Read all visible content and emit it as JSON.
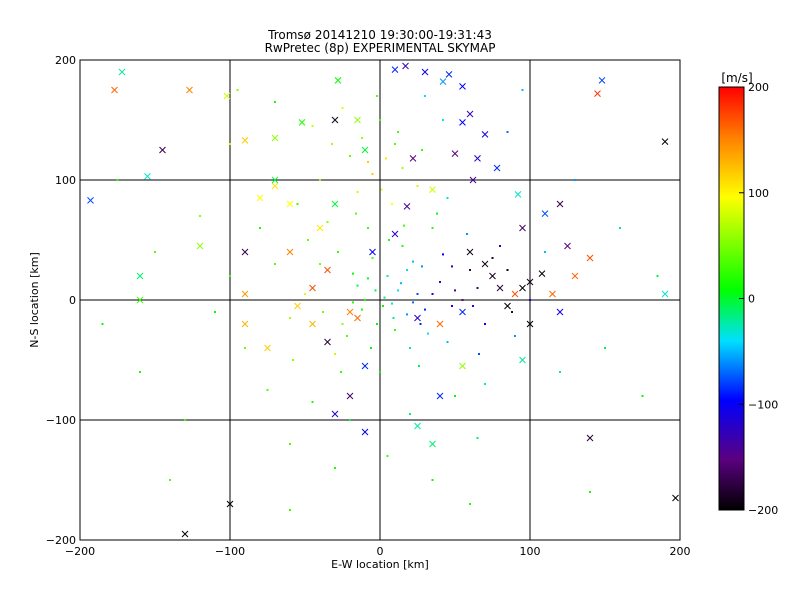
{
  "chart_data": {
    "type": "scatter",
    "title": "Tromsø 20141210 19:30:00-19:31:43",
    "subtitle": "RwPretec (8p) EXPERIMENTAL SKYMAP",
    "xlabel": "E-W location [km]",
    "ylabel": "N-S location [km]",
    "xlim": [
      -200,
      200
    ],
    "ylim": [
      -200,
      200
    ],
    "xticks": [
      -200,
      -100,
      0,
      100,
      200
    ],
    "yticks": [
      -200,
      -100,
      0,
      100,
      200
    ],
    "grid": true,
    "colorbar": {
      "label": "[m/s]",
      "range": [
        -200,
        200
      ],
      "ticks": [
        200,
        100,
        0,
        -100,
        -200
      ],
      "colormap": [
        "#000000",
        "#5a0080",
        "#0000ff",
        "#00e0ff",
        "#00ff00",
        "#ffff00",
        "#ff8000",
        "#ff0000"
      ]
    },
    "series": [
      {
        "marker": "x",
        "points": [
          [
            -177,
            175,
            160
          ],
          [
            -127,
            175,
            150
          ],
          [
            -172,
            190,
            -20
          ],
          [
            -145,
            125,
            -170
          ],
          [
            -193,
            83,
            -80
          ],
          [
            -155,
            103,
            -30
          ],
          [
            -90,
            133,
            120
          ],
          [
            -70,
            95,
            110
          ],
          [
            -70,
            135,
            60
          ],
          [
            -52,
            148,
            20
          ],
          [
            -30,
            150,
            -190
          ],
          [
            -28,
            183,
            10
          ],
          [
            -15,
            150,
            60
          ],
          [
            -10,
            125,
            0
          ],
          [
            10,
            192,
            -90
          ],
          [
            17,
            195,
            -130
          ],
          [
            30,
            190,
            -110
          ],
          [
            42,
            182,
            -60
          ],
          [
            46,
            188,
            -90
          ],
          [
            55,
            178,
            -100
          ],
          [
            60,
            155,
            -130
          ],
          [
            55,
            148,
            -100
          ],
          [
            70,
            138,
            -110
          ],
          [
            50,
            122,
            -150
          ],
          [
            65,
            118,
            -120
          ],
          [
            78,
            110,
            -90
          ],
          [
            62,
            100,
            -140
          ],
          [
            22,
            118,
            -150
          ],
          [
            18,
            78,
            -140
          ],
          [
            35,
            92,
            80
          ],
          [
            92,
            88,
            -30
          ],
          [
            95,
            60,
            -160
          ],
          [
            110,
            72,
            -80
          ],
          [
            120,
            80,
            -170
          ],
          [
            125,
            45,
            -150
          ],
          [
            140,
            35,
            170
          ],
          [
            145,
            172,
            180
          ],
          [
            148,
            183,
            -80
          ],
          [
            190,
            132,
            -200
          ],
          [
            -102,
            170,
            80
          ],
          [
            -70,
            100,
            0
          ],
          [
            -60,
            80,
            100
          ],
          [
            -5,
            40,
            -100
          ],
          [
            10,
            55,
            -120
          ],
          [
            70,
            30,
            -190
          ],
          [
            75,
            20,
            -190
          ],
          [
            80,
            10,
            -180
          ],
          [
            95,
            10,
            -200
          ],
          [
            100,
            15,
            -190
          ],
          [
            108,
            22,
            -200
          ],
          [
            115,
            5,
            160
          ],
          [
            90,
            5,
            170
          ],
          [
            85,
            -5,
            -200
          ],
          [
            100,
            -20,
            -200
          ],
          [
            120,
            -10,
            -110
          ],
          [
            130,
            20,
            160
          ],
          [
            60,
            40,
            -190
          ],
          [
            55,
            -10,
            -90
          ],
          [
            25,
            -15,
            -120
          ],
          [
            40,
            -20,
            160
          ],
          [
            -15,
            -15,
            160
          ],
          [
            -20,
            -10,
            150
          ],
          [
            -35,
            -35,
            -180
          ],
          [
            -10,
            -55,
            -90
          ],
          [
            -55,
            -5,
            120
          ],
          [
            -45,
            10,
            170
          ],
          [
            -35,
            25,
            170
          ],
          [
            -60,
            40,
            150
          ],
          [
            -90,
            40,
            -170
          ],
          [
            -40,
            60,
            110
          ],
          [
            -30,
            80,
            0
          ],
          [
            -80,
            85,
            100
          ],
          [
            -120,
            45,
            60
          ],
          [
            -160,
            20,
            -10
          ],
          [
            -160,
            0,
            30
          ],
          [
            -90,
            5,
            140
          ],
          [
            -90,
            -20,
            130
          ],
          [
            -75,
            -40,
            120
          ],
          [
            -30,
            -95,
            -120
          ],
          [
            -10,
            -110,
            -100
          ],
          [
            25,
            -105,
            -20
          ],
          [
            40,
            -80,
            -90
          ],
          [
            35,
            -120,
            -10
          ],
          [
            -20,
            -80,
            -160
          ],
          [
            55,
            -55,
            60
          ],
          [
            95,
            -50,
            -20
          ],
          [
            140,
            -115,
            -180
          ],
          [
            -130,
            -195,
            -200
          ],
          [
            -100,
            -170,
            -200
          ],
          [
            197,
            -165,
            -200
          ],
          [
            190,
            5,
            -30
          ],
          [
            -45,
            -20,
            130
          ]
        ]
      },
      {
        "marker": "dot",
        "points": [
          [
            5,
            20,
            -20
          ],
          [
            12,
            8,
            -40
          ],
          [
            -10,
            0,
            20
          ],
          [
            18,
            -12,
            -60
          ],
          [
            2,
            -5,
            10
          ],
          [
            -15,
            12,
            -10
          ],
          [
            25,
            5,
            -80
          ],
          [
            10,
            -25,
            30
          ],
          [
            -5,
            35,
            40
          ],
          [
            30,
            -8,
            -90
          ],
          [
            -25,
            -20,
            60
          ],
          [
            40,
            15,
            -130
          ],
          [
            -40,
            30,
            50
          ],
          [
            15,
            45,
            20
          ],
          [
            20,
            -40,
            -20
          ],
          [
            -30,
            -45,
            80
          ],
          [
            45,
            -35,
            -50
          ],
          [
            -50,
            5,
            90
          ],
          [
            55,
            0,
            -150
          ],
          [
            -8,
            60,
            30
          ],
          [
            0,
            -60,
            10
          ],
          [
            60,
            25,
            -170
          ],
          [
            -60,
            -15,
            70
          ],
          [
            35,
            60,
            20
          ],
          [
            -35,
            65,
            60
          ],
          [
            70,
            -20,
            -100
          ],
          [
            -70,
            30,
            40
          ],
          [
            8,
            80,
            100
          ],
          [
            -15,
            90,
            110
          ],
          [
            25,
            95,
            80
          ],
          [
            -5,
            105,
            120
          ],
          [
            15,
            110,
            70
          ],
          [
            -20,
            120,
            50
          ],
          [
            10,
            130,
            40
          ],
          [
            -40,
            100,
            60
          ],
          [
            45,
            85,
            -30
          ],
          [
            -55,
            80,
            30
          ],
          [
            80,
            45,
            -110
          ],
          [
            -80,
            60,
            20
          ],
          [
            90,
            -30,
            -60
          ],
          [
            -90,
            -40,
            50
          ],
          [
            100,
            0,
            -120
          ],
          [
            -100,
            20,
            30
          ],
          [
            50,
            -80,
            10
          ],
          [
            -45,
            -85,
            20
          ],
          [
            20,
            -95,
            -10
          ],
          [
            -20,
            -100,
            0
          ],
          [
            70,
            -70,
            -30
          ],
          [
            -75,
            -75,
            40
          ],
          [
            110,
            40,
            -50
          ],
          [
            -110,
            -10,
            10
          ],
          [
            120,
            -60,
            -20
          ],
          [
            -120,
            70,
            60
          ],
          [
            5,
            -130,
            30
          ],
          [
            -30,
            -140,
            20
          ],
          [
            35,
            -150,
            10
          ],
          [
            -60,
            -120,
            40
          ],
          [
            65,
            -115,
            -10
          ],
          [
            130,
            100,
            -60
          ],
          [
            -130,
            -100,
            30
          ],
          [
            150,
            -40,
            0
          ],
          [
            -150,
            40,
            40
          ],
          [
            160,
            60,
            -20
          ],
          [
            -160,
            -60,
            20
          ],
          [
            0,
            150,
            30
          ],
          [
            -25,
            160,
            90
          ],
          [
            30,
            170,
            -40
          ],
          [
            -70,
            165,
            20
          ],
          [
            85,
            140,
            -70
          ],
          [
            -100,
            130,
            80
          ],
          [
            175,
            -80,
            10
          ],
          [
            -175,
            100,
            30
          ],
          [
            140,
            -160,
            20
          ],
          [
            -140,
            -150,
            40
          ],
          [
            185,
            20,
            0
          ],
          [
            -185,
            -20,
            10
          ],
          [
            95,
            175,
            -50
          ],
          [
            -95,
            175,
            60
          ],
          [
            60,
            -170,
            20
          ],
          [
            -60,
            -175,
            30
          ],
          [
            3,
            2,
            -10
          ],
          [
            -3,
            8,
            0
          ],
          [
            8,
            -3,
            -30
          ],
          [
            14,
            14,
            -50
          ],
          [
            -12,
            -8,
            20
          ],
          [
            22,
            -2,
            -70
          ],
          [
            -18,
            22,
            10
          ],
          [
            28,
            28,
            -60
          ],
          [
            -22,
            -30,
            40
          ],
          [
            32,
            -28,
            -40
          ],
          [
            -28,
            40,
            30
          ],
          [
            42,
            38,
            -100
          ],
          [
            -38,
            -10,
            50
          ],
          [
            48,
            -5,
            -110
          ],
          [
            6,
            50,
            20
          ],
          [
            -6,
            -40,
            10
          ],
          [
            16,
            62,
            30
          ],
          [
            -16,
            72,
            40
          ],
          [
            26,
            -55,
            -10
          ],
          [
            -26,
            -60,
            30
          ],
          [
            38,
            72,
            0
          ],
          [
            -48,
            50,
            50
          ],
          [
            58,
            55,
            -60
          ],
          [
            -58,
            -50,
            60
          ],
          [
            66,
            -45,
            -80
          ],
          [
            1,
            92,
            90
          ],
          [
            -8,
            115,
            120
          ],
          [
            4,
            118,
            110
          ],
          [
            -12,
            135,
            60
          ],
          [
            12,
            140,
            40
          ],
          [
            -32,
            130,
            70
          ],
          [
            28,
            125,
            30
          ],
          [
            -45,
            145,
            80
          ],
          [
            42,
            150,
            -30
          ],
          [
            -2,
            170,
            40
          ],
          [
            18,
            25,
            -30
          ],
          [
            -8,
            18,
            0
          ],
          [
            22,
            32,
            -50
          ],
          [
            35,
            5,
            -120
          ],
          [
            -18,
            -2,
            20
          ],
          [
            9,
            -15,
            -20
          ],
          [
            -2,
            -20,
            10
          ],
          [
            27,
            -20,
            -90
          ],
          [
            50,
            8,
            -140
          ],
          [
            65,
            10,
            -160
          ],
          [
            75,
            35,
            -180
          ],
          [
            85,
            25,
            -190
          ],
          [
            88,
            -10,
            -170
          ],
          [
            62,
            -5,
            -130
          ],
          [
            48,
            28,
            -110
          ]
        ]
      }
    ]
  }
}
